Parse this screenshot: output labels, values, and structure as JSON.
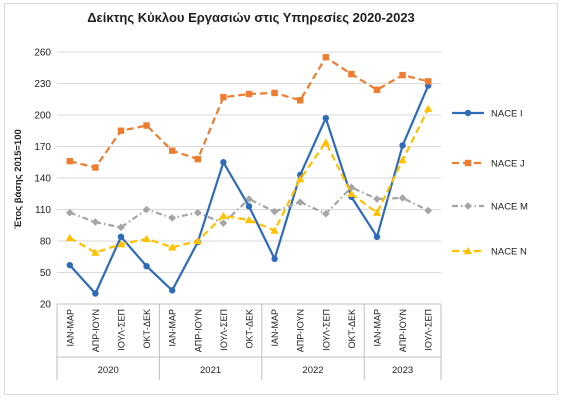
{
  "chart_data": {
    "type": "line",
    "title": "Δείκτης Κύκλου Εργασιών στις Υπηρεσίες 2020-2023",
    "ylabel": "Έτος βάσης 2015=100",
    "xlabel": "",
    "ylim": [
      20,
      260
    ],
    "yticks": [
      20,
      50,
      80,
      110,
      140,
      170,
      200,
      230,
      260
    ],
    "grid": true,
    "legend_position": "right",
    "categories": [
      "ΙΑΝ-ΜΑΡ",
      "ΑΠΡ-ΙΟΥΝ",
      "ΙΟΥΛ-ΣΕΠ",
      "ΟΚΤ-ΔΕΚ",
      "ΙΑΝ-ΜΑΡ",
      "ΑΠΡ-ΙΟΥΝ",
      "ΙΟΥΛ-ΣΕΠ",
      "ΟΚΤ-ΔΕΚ",
      "ΙΑΝ-ΜΑΡ",
      "ΑΠΡ-ΙΟΥΝ",
      "ΙΟΥΛ-ΣΕΠ",
      "ΟΚΤ-ΔΕΚ",
      "ΙΑΝ-ΜΑΡ",
      "ΑΠΡ-ΙΟΥΝ",
      "ΙΟΥΛ-ΣΕΠ"
    ],
    "years": [
      {
        "label": "2020",
        "count": 4
      },
      {
        "label": "2021",
        "count": 4
      },
      {
        "label": "2022",
        "count": 4
      },
      {
        "label": "2023",
        "count": 3
      }
    ],
    "series": [
      {
        "name": "NACE I",
        "color": "#2e6bb8",
        "style": "solid",
        "marker": "circle",
        "values": [
          57,
          30,
          84,
          56,
          33,
          79,
          155,
          113,
          63,
          143,
          197,
          122,
          84,
          171,
          228
        ]
      },
      {
        "name": "NACE J",
        "color": "#ee7d31",
        "style": "dashed",
        "marker": "square",
        "values": [
          156,
          150,
          185,
          190,
          166,
          158,
          217,
          220,
          221,
          214,
          255,
          239,
          224,
          238,
          232
        ]
      },
      {
        "name": "NACE M",
        "color": "#a5a5a5",
        "style": "dashdot",
        "marker": "diamond",
        "values": [
          107,
          98,
          93,
          110,
          102,
          107,
          97,
          120,
          108,
          117,
          106,
          131,
          120,
          121,
          109
        ]
      },
      {
        "name": "NACE N",
        "color": "#ffc000",
        "style": "dashed",
        "marker": "triangle",
        "values": [
          83,
          69,
          77,
          82,
          74,
          80,
          104,
          100,
          90,
          139,
          174,
          125,
          107,
          157,
          206
        ]
      }
    ]
  }
}
